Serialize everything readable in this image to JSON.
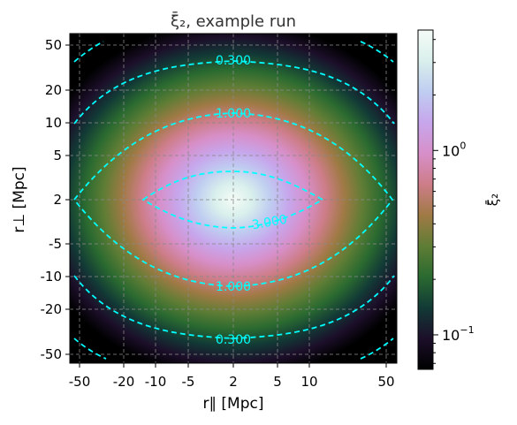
{
  "chart_data": {
    "type": "heatmap",
    "title": "ξ̄₂, example run",
    "xlabel": "r∥ [Mpc]",
    "ylabel": "r⊥ [Mpc]",
    "x_tick_labels": [
      "-50",
      "-20",
      "-10",
      "-5",
      "2",
      "5",
      "10",
      "50"
    ],
    "y_tick_labels": [
      "50",
      "20",
      "10",
      "5",
      "2",
      "-5",
      "-10",
      "-20",
      "-50"
    ],
    "grid": true,
    "colorbar": {
      "label": "ξ̄₂",
      "scale": "log",
      "range": [
        0.065,
        4.5
      ],
      "ticks": [
        {
          "value": 1.0,
          "base": "10",
          "exp": "0"
        },
        {
          "value": 0.1,
          "base": "10",
          "exp": "−1"
        }
      ],
      "colors": [
        "#000000",
        "#1c0f2a",
        "#123a36",
        "#2a6a30",
        "#5f7d35",
        "#a07a45",
        "#cd7d88",
        "#d78fc9",
        "#c7a6ec",
        "#bfcdf1",
        "#d9f0ec",
        "#f5fbf7"
      ]
    },
    "contours": [
      {
        "level": 0.3,
        "label": "0.300"
      },
      {
        "level": 1.0,
        "label": "1.000"
      },
      {
        "level": 3.0,
        "label": "3.000"
      }
    ],
    "contour_color": "#00ffff",
    "grid_color": "#888888"
  }
}
